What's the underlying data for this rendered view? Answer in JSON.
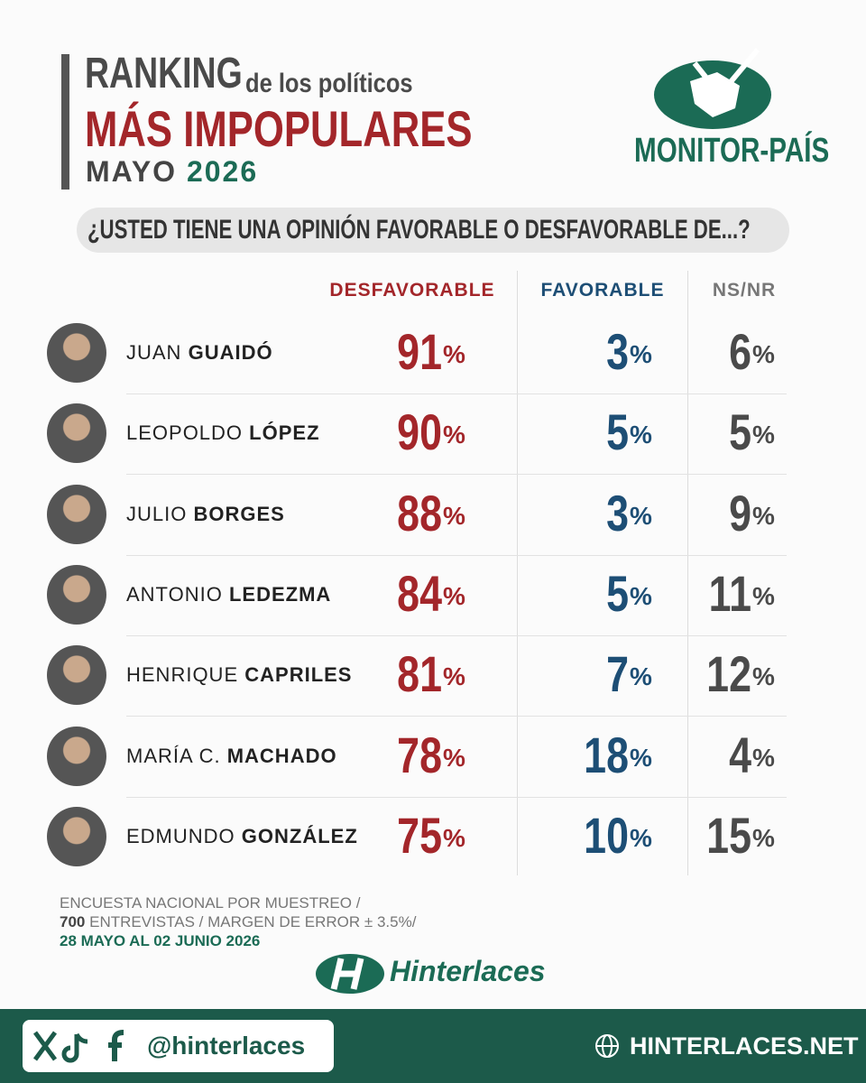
{
  "header": {
    "title_1": "RANKING",
    "title_1_rest": "de los políticos",
    "title_2": "MÁS IMPOPULARES",
    "period_month": "MAYO",
    "period_year": "2026",
    "logo": "MONITOR-PAÍS"
  },
  "question": "¿USTED TIENE UNA OPINIÓN FAVORABLE O DESFAVORABLE DE...?",
  "table": {
    "unit": "%",
    "columns": [
      "DESFAVORABLE",
      "FAVORABLE",
      "NS/NR"
    ],
    "rows": [
      {
        "first": "JUAN",
        "last": "GUAIDÓ",
        "values": [
          91,
          3,
          6
        ]
      },
      {
        "first": "LEOPOLDO",
        "last": "LÓPEZ",
        "values": [
          90,
          5,
          5
        ]
      },
      {
        "first": "JULIO",
        "last": "BORGES",
        "values": [
          88,
          3,
          9
        ]
      },
      {
        "first": "ANTONIO",
        "last": "LEDEZMA",
        "values": [
          84,
          5,
          11
        ]
      },
      {
        "first": "HENRIQUE",
        "last": "CAPRILES",
        "values": [
          81,
          7,
          12
        ]
      },
      {
        "first": "MARÍA C.",
        "last": "MACHADO",
        "values": [
          78,
          18,
          4
        ]
      },
      {
        "first": "EDMUNDO",
        "last": "GONZÁLEZ",
        "values": [
          75,
          10,
          15
        ]
      }
    ]
  },
  "footer": {
    "line_1": "ENCUESTA NACIONAL POR MUESTREO /",
    "sample": "700",
    "line_2": "ENTREVISTAS / MARGEN DE ERROR  ± 3.5%/",
    "dates": "28 MAYO AL 02 JUNIO 2026",
    "brand": "Hinterlaces",
    "handle": "@hinterlaces",
    "website": "HINTERLACES.NET"
  }
}
